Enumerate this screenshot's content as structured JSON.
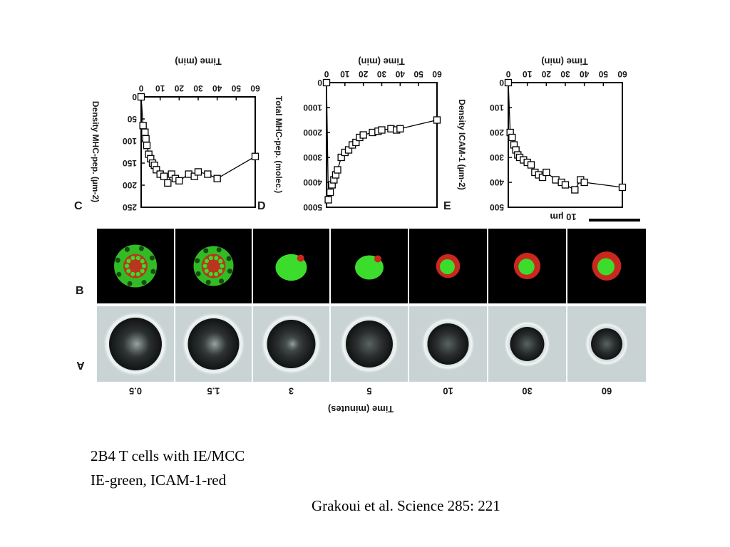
{
  "slide": {
    "caption_line_1": "2B4 T cells with IE/MCC",
    "caption_line_2": "IE-green, ICAM-1-red",
    "citation": "Grakoui et al. Science 285: 221"
  },
  "figure": {
    "row_labels": {
      "A": "A",
      "B": "B"
    },
    "time_axis_label": "Time (minutes)",
    "time_points": [
      "0.5",
      "1.5",
      "3",
      "5",
      "10",
      "30",
      "60"
    ],
    "scale_bar_label": "10 µm",
    "colors": {
      "ie": "#3cdc2c",
      "icam1": "#c8281e",
      "fluor_bg": "#000000",
      "dic_bg": "#c9d3d3"
    },
    "panels_B_fluorescence": [
      {
        "time": "0.5",
        "pattern": "ring",
        "ie_level": 0.55,
        "icam_level": 0.45
      },
      {
        "time": "1.5",
        "pattern": "ring",
        "ie_level": 0.6,
        "icam_level": 0.4
      },
      {
        "time": "3",
        "pattern": "clustering",
        "ie_level": 0.7,
        "icam_level": 0.3
      },
      {
        "time": "5",
        "pattern": "clustering",
        "ie_level": 0.75,
        "icam_level": 0.25
      },
      {
        "time": "10",
        "pattern": "central",
        "ie_level": 0.8,
        "icam_level": 0.35
      },
      {
        "time": "30",
        "pattern": "central",
        "ie_level": 0.8,
        "icam_level": 0.45
      },
      {
        "time": "60",
        "pattern": "central",
        "ie_level": 0.8,
        "icam_level": 0.55
      }
    ]
  },
  "chart_data": [
    {
      "type": "line",
      "panel": "C",
      "title": "",
      "xlabel": "Time (min)",
      "ylabel": "Density MHC-pep. (µm-2)",
      "x_ticks": [
        "0",
        "10",
        "20",
        "30",
        "40",
        "50",
        "60"
      ],
      "y_ticks": [
        "0",
        "50",
        "100",
        "150",
        "200",
        "250"
      ],
      "xlim": [
        0,
        60
      ],
      "ylim": [
        0,
        250
      ],
      "y_reversed": true,
      "series": [
        {
          "marker": "open-square",
          "x": [
            0,
            1,
            2,
            2.5,
            3,
            4,
            5,
            6,
            7,
            8,
            10,
            12,
            14,
            16,
            18,
            20,
            25,
            28,
            30,
            35,
            40,
            60
          ],
          "y": [
            0,
            65,
            80,
            95,
            110,
            130,
            140,
            150,
            155,
            165,
            175,
            180,
            195,
            175,
            185,
            190,
            175,
            180,
            170,
            175,
            185,
            135
          ]
        }
      ]
    },
    {
      "type": "line",
      "panel": "D",
      "title": "",
      "xlabel": "Time (min)",
      "ylabel": "Total MHC-pep. (molec.)",
      "x_ticks": [
        "0",
        "10",
        "20",
        "30",
        "40",
        "50",
        "60"
      ],
      "y_ticks": [
        "0",
        "1000",
        "2000",
        "3000",
        "4000",
        "5000"
      ],
      "xlim": [
        0,
        60
      ],
      "ylim": [
        0,
        5000
      ],
      "y_reversed": true,
      "series": [
        {
          "marker": "open-square",
          "x": [
            0,
            1,
            2,
            3,
            4,
            5,
            6,
            8,
            10,
            12,
            14,
            16,
            18,
            20,
            25,
            28,
            30,
            35,
            38,
            40,
            60
          ],
          "y": [
            0,
            4700,
            4400,
            4100,
            3900,
            3700,
            3500,
            3000,
            2800,
            2700,
            2500,
            2400,
            2200,
            2100,
            2000,
            1950,
            1900,
            1850,
            1900,
            1850,
            1500
          ]
        }
      ]
    },
    {
      "type": "line",
      "panel": "E",
      "title": "",
      "xlabel": "Time (min)",
      "ylabel": "Density ICAM-1 (µm-2)",
      "x_ticks": [
        "0",
        "10",
        "20",
        "30",
        "40",
        "50",
        "60"
      ],
      "y_ticks": [
        "0",
        "100",
        "200",
        "300",
        "400",
        "500"
      ],
      "xlim": [
        0,
        60
      ],
      "ylim": [
        0,
        500
      ],
      "y_reversed": true,
      "series": [
        {
          "marker": "open-square",
          "x": [
            0,
            1,
            2,
            3,
            4,
            5,
            6,
            8,
            10,
            12,
            14,
            16,
            18,
            20,
            25,
            28,
            30,
            35,
            38,
            40,
            60
          ],
          "y": [
            0,
            200,
            220,
            250,
            270,
            290,
            300,
            310,
            320,
            330,
            360,
            370,
            380,
            360,
            390,
            400,
            410,
            430,
            390,
            400,
            420
          ]
        }
      ]
    }
  ]
}
